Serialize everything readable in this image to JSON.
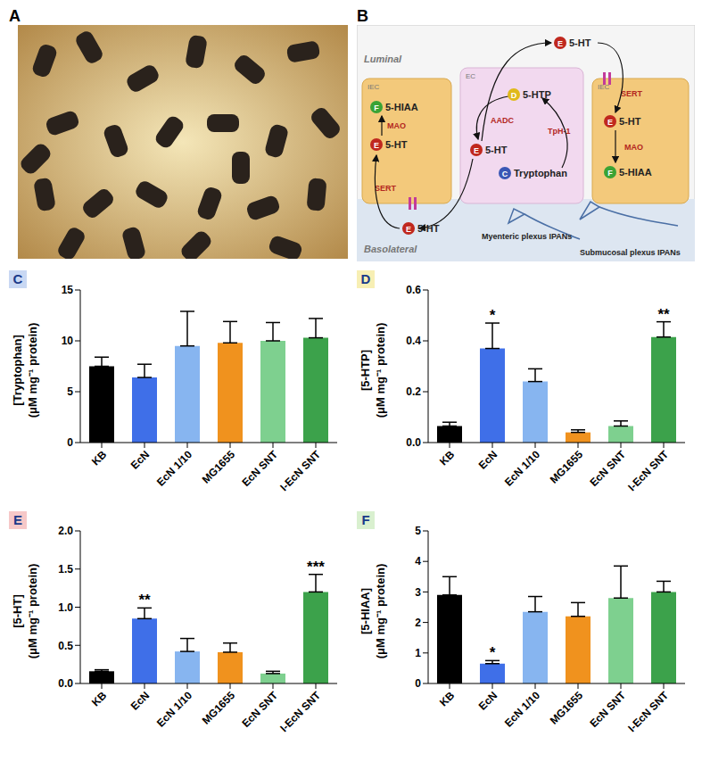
{
  "figure": {
    "photo_label": "A",
    "diagram": {
      "label": "B",
      "regions": [
        "Luminal",
        "Basolateral"
      ],
      "cells": [
        "IEC",
        "EC",
        "IEC"
      ],
      "molecules": [
        {
          "letter": "F",
          "name": "5-HIAA"
        },
        {
          "letter": "E",
          "name": "5-HT"
        },
        {
          "letter": "E",
          "name": "5-HT"
        },
        {
          "letter": "D",
          "name": "5-HTP"
        },
        {
          "letter": "E",
          "name": "5-HT"
        },
        {
          "letter": "C",
          "name": "Tryptophan"
        },
        {
          "letter": "E",
          "name": "5-HT"
        },
        {
          "letter": "F",
          "name": "5-HIAA"
        },
        {
          "letter": "E",
          "name": "5-HT"
        }
      ],
      "enzymes": [
        "MAO",
        "SERT",
        "AADC",
        "TpH-1",
        "SERT",
        "MAO"
      ],
      "nerves": [
        "Myenteric plexus IPANs",
        "Submucosal plexus IPANs"
      ]
    }
  },
  "chart_data": [
    {
      "type": "bar",
      "title": "C",
      "ylabel": "[Tryptophan]\n(μM mg⁻¹ protein)",
      "categories": [
        "KB",
        "EcN",
        "EcN 1/10",
        "MG1655",
        "EcN SNT",
        "I-EcN SNT"
      ],
      "values": [
        7.5,
        6.4,
        9.5,
        9.8,
        10.0,
        10.3
      ],
      "errors": [
        0.9,
        1.3,
        3.4,
        2.1,
        1.8,
        1.9
      ],
      "significance": [
        null,
        null,
        null,
        null,
        null,
        null
      ],
      "colors": [
        "#000000",
        "#3f6fe8",
        "#87b5f0",
        "#f0921e",
        "#7ed08f",
        "#3ca24b"
      ],
      "ylim": [
        0,
        15
      ],
      "yticks": [
        0,
        5,
        10,
        15
      ]
    },
    {
      "type": "bar",
      "title": "D",
      "ylabel": "[5-HTP]\n(μM mg⁻¹ protein)",
      "categories": [
        "KB",
        "EcN",
        "EcN 1/10",
        "MG1655",
        "EcN SNT",
        "I-EcN SNT"
      ],
      "values": [
        0.065,
        0.37,
        0.24,
        0.04,
        0.065,
        0.415
      ],
      "errors": [
        0.015,
        0.1,
        0.05,
        0.01,
        0.02,
        0.06
      ],
      "significance": [
        null,
        "*",
        null,
        null,
        null,
        "**"
      ],
      "colors": [
        "#000000",
        "#3f6fe8",
        "#87b5f0",
        "#f0921e",
        "#7ed08f",
        "#3ca24b"
      ],
      "ylim": [
        0,
        0.6
      ],
      "yticks": [
        {
          "value": 0,
          "label": "0.0"
        },
        0.2,
        0.4,
        0.6
      ]
    },
    {
      "type": "bar",
      "title": "E",
      "ylabel": "[5-HT]\n(μM mg⁻¹ protein)",
      "categories": [
        "KB",
        "EcN",
        "EcN 1/10",
        "MG1655",
        "EcN SNT",
        "I-EcN SNT"
      ],
      "values": [
        0.16,
        0.85,
        0.42,
        0.41,
        0.13,
        1.2
      ],
      "errors": [
        0.02,
        0.14,
        0.17,
        0.12,
        0.03,
        0.23
      ],
      "significance": [
        null,
        "**",
        null,
        null,
        null,
        "***"
      ],
      "colors": [
        "#000000",
        "#3f6fe8",
        "#87b5f0",
        "#f0921e",
        "#7ed08f",
        "#3ca24b"
      ],
      "ylim": [
        0,
        2
      ],
      "yticks": [
        {
          "value": 0,
          "label": "0.0"
        },
        0.5,
        {
          "value": 1,
          "label": "1.0"
        },
        1.5,
        {
          "value": 2,
          "label": "2.0"
        }
      ]
    },
    {
      "type": "bar",
      "title": "F",
      "ylabel": "[5-HIAA]\n(μM mg⁻¹ protein)",
      "categories": [
        "KB",
        "EcN",
        "EcN 1/10",
        "MG1655",
        "EcN SNT",
        "I-EcN SNT"
      ],
      "values": [
        2.9,
        0.65,
        2.35,
        2.2,
        2.8,
        3.0
      ],
      "errors": [
        0.6,
        0.1,
        0.5,
        0.45,
        1.05,
        0.35
      ],
      "significance": [
        null,
        "*",
        null,
        null,
        null,
        null
      ],
      "colors": [
        "#000000",
        "#3f6fe8",
        "#87b5f0",
        "#f0921e",
        "#7ed08f",
        "#3ca24b"
      ],
      "ylim": [
        0,
        5
      ],
      "yticks": [
        0,
        1,
        2,
        3,
        4,
        5
      ]
    }
  ]
}
